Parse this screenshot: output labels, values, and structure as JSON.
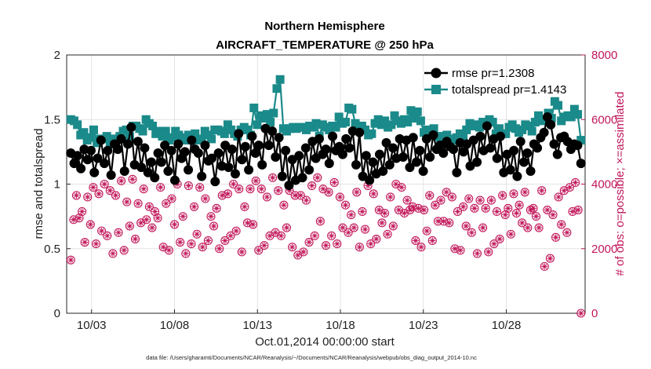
{
  "colors": {
    "rmse": "#000000",
    "totalspread": "#1b8a8a",
    "obs": "#c2185b",
    "grid": "#e3e3e3"
  },
  "chart_data": {
    "type": "line",
    "title": "Northern Hemisphere",
    "subtitle": "AIRCRAFT_TEMPERATURE @ 250 hPa",
    "xlabel": "Oct.01,2014 00:00:00 start",
    "ylabel": "rmse and totalspread",
    "ylabel_right": "# of obs: o=possible; ×=assimilated",
    "footnote": "data file: /Users/gharamti/Documents/NCAR/Reanalysis/~/Documents/NCAR/Reanalysis/webpub/obs_diag_output_2014-10.nc",
    "x_ticks": [
      {
        "label": "10/03",
        "day": 3
      },
      {
        "label": "10/08",
        "day": 8
      },
      {
        "label": "10/13",
        "day": 13
      },
      {
        "label": "10/18",
        "day": 18
      },
      {
        "label": "10/23",
        "day": 23
      },
      {
        "label": "10/28",
        "day": 28
      }
    ],
    "xlim": [
      1.5,
      32.75
    ],
    "ylim": [
      0,
      2
    ],
    "y_ticks": [
      "0",
      "0.5",
      "1",
      "1.5",
      "2"
    ],
    "ylim_right": [
      0,
      8000
    ],
    "y_ticks_right": [
      "0",
      "2000",
      "4000",
      "6000",
      "8000"
    ],
    "legend": {
      "position": "top-right"
    },
    "series": [
      {
        "name": "rmse",
        "pr": "1.2308",
        "legend_label": "rmse pr=1.2308",
        "marker": "circle",
        "values": [
          1.24,
          1.16,
          1.22,
          1.12,
          1.27,
          1.19,
          1.26,
          1.09,
          1.2,
          1.34,
          1.16,
          1.26,
          1.07,
          1.31,
          1.27,
          1.35,
          1.1,
          1.31,
          1.44,
          1.15,
          1.33,
          1.13,
          1.28,
          1.09,
          1.17,
          1.05,
          1.24,
          1.17,
          1.3,
          1.1,
          1.26,
          1.03,
          1.31,
          1.2,
          1.25,
          1.11,
          1.34,
          1.27,
          1.24,
          1.06,
          1.3,
          1.18,
          1.2,
          1.02,
          1.24,
          1.14,
          1.3,
          1.13,
          1.27,
          1.08,
          1.39,
          1.19,
          1.29,
          1.11,
          1.37,
          1.24,
          1.3,
          1.15,
          1.43,
          1.3,
          1.41,
          1.21,
          1.36,
          1.06,
          1.26,
          0.99,
          1.19,
          1.03,
          1.22,
          1.05,
          1.28,
          1.11,
          1.33,
          1.2,
          1.35,
          1.23,
          1.27,
          1.16,
          1.37,
          1.26,
          1.29,
          1.23,
          1.35,
          1.28,
          1.41,
          1.15,
          1.4,
          1.06,
          1.22,
          1.03,
          1.17,
          1.08,
          1.23,
          1.1,
          1.32,
          1.15,
          1.28,
          1.2,
          1.35,
          1.21,
          1.34,
          1.13,
          1.36,
          1.17,
          1.26,
          1.1,
          1.35,
          1.21,
          1.38,
          1.27,
          1.3,
          1.24,
          1.33,
          1.29,
          1.27,
          1.09,
          1.32,
          1.25,
          1.31,
          1.14,
          1.34,
          1.17,
          1.37,
          1.26,
          1.45,
          1.28,
          1.35,
          1.2,
          1.37,
          1.09,
          1.23,
          1.11,
          1.26,
          1.06,
          1.33,
          1.17,
          1.24,
          1.1,
          1.31,
          1.28,
          1.36,
          1.4,
          1.52,
          1.46,
          1.31,
          1.23,
          1.36,
          1.37,
          1.33,
          1.27,
          1.31,
          1.3,
          1.16
        ]
      },
      {
        "name": "totalspread",
        "pr": "1.4143",
        "legend_label": "totalspread pr=1.4143",
        "marker": "square",
        "values": [
          1.5,
          1.49,
          1.46,
          1.38,
          1.4,
          1.34,
          1.36,
          1.42,
          1.32,
          1.35,
          1.35,
          1.37,
          1.32,
          1.35,
          1.35,
          1.37,
          1.41,
          1.42,
          1.37,
          1.45,
          1.45,
          1.43,
          1.41,
          1.5,
          1.47,
          1.45,
          1.39,
          1.41,
          1.37,
          1.41,
          1.34,
          1.36,
          1.41,
          1.38,
          1.36,
          1.34,
          1.38,
          1.36,
          1.39,
          1.34,
          1.35,
          1.41,
          1.38,
          1.35,
          1.42,
          1.42,
          1.41,
          1.39,
          1.46,
          1.42,
          1.39,
          1.37,
          1.42,
          1.44,
          1.42,
          1.38,
          1.59,
          1.46,
          1.53,
          1.51,
          1.54,
          1.48,
          1.55,
          1.74,
          1.81,
          1.43,
          1.41,
          1.43,
          1.44,
          1.43,
          1.44,
          1.44,
          1.42,
          1.45,
          1.44,
          1.47,
          1.37,
          1.46,
          1.44,
          1.42,
          1.45,
          1.44,
          1.52,
          1.47,
          1.48,
          1.59,
          1.58,
          1.47,
          1.43,
          1.45,
          1.42,
          1.38,
          1.39,
          1.47,
          1.5,
          1.46,
          1.49,
          1.44,
          1.46,
          1.53,
          1.49,
          1.47,
          1.5,
          1.48,
          1.57,
          1.51,
          1.56,
          1.49,
          1.4,
          1.42,
          1.38,
          1.43,
          1.37,
          1.36,
          1.37,
          1.38,
          1.35,
          1.34,
          1.36,
          1.39,
          1.36,
          1.42,
          1.47,
          1.45,
          1.46,
          1.44,
          1.48,
          1.46,
          1.5,
          1.48,
          1.39,
          1.43,
          1.39,
          1.39,
          1.44,
          1.46,
          1.43,
          1.4,
          1.42,
          1.46,
          1.45,
          1.41,
          1.48,
          1.53,
          1.49,
          1.5,
          1.55,
          1.51,
          1.64,
          1.61,
          1.49,
          1.52,
          1.53,
          1.52,
          1.58,
          1.54,
          1.34
        ]
      },
      {
        "name": "obs possible",
        "axis": "right",
        "marker": "circle-open",
        "values": [
          1650,
          2900,
          3650,
          2950,
          3150,
          2200,
          3600,
          2750,
          3900,
          2150,
          3700,
          2550,
          4000,
          2400,
          3800,
          1850,
          3650,
          2500,
          4100,
          1950,
          3450,
          2700,
          4150,
          2300,
          3400,
          2800,
          3850,
          2900,
          3300,
          2650,
          3150,
          2950,
          3900,
          2050,
          3400,
          1950,
          3550,
          2750,
          4000,
          2200,
          3000,
          1850,
          3950,
          2150,
          3300,
          2450,
          3900,
          2050,
          3550,
          2250,
          3000,
          2700,
          3250,
          2000,
          3650,
          2250,
          3700,
          2400,
          4000,
          2550,
          3850,
          1900,
          3300,
          2800,
          3850,
          2750,
          4100,
          1950,
          3850,
          2100,
          3600,
          2400,
          4200,
          2500,
          3800,
          2400,
          3350,
          2650,
          3800,
          2050,
          3650,
          1800,
          3650,
          1900,
          3500,
          2200,
          3950,
          2400,
          4200,
          2850,
          3850,
          2100,
          3750,
          2400,
          4050,
          2150,
          3600,
          2650,
          3350,
          2500,
          3050,
          2650,
          3750,
          2050,
          3150,
          2600,
          3950,
          2150,
          3700,
          2300,
          3200,
          2800,
          3100,
          2450,
          3600,
          2700,
          4000,
          3200,
          3900,
          3100,
          3500,
          3200,
          3300,
          2250,
          3250,
          2050,
          3200,
          2550,
          3650,
          2250,
          3350,
          2850,
          3500,
          2850,
          3750,
          2800,
          3600,
          2000,
          3150,
          1950,
          3300,
          2700,
          3550,
          2500,
          3250,
          1850,
          3500,
          2650,
          3250,
          1900,
          3500,
          2150,
          3150,
          2300,
          3650,
          3050,
          3250,
          2450,
          3700,
          3100,
          3350,
          2800,
          3750,
          2650,
          3200,
          3250,
          3000,
          2650,
          3800,
          1450,
          3200,
          1700,
          3050,
          2350,
          3600,
          2750,
          3800,
          2500,
          3900,
          3150,
          4050,
          3200,
          0
        ]
      }
    ]
  }
}
